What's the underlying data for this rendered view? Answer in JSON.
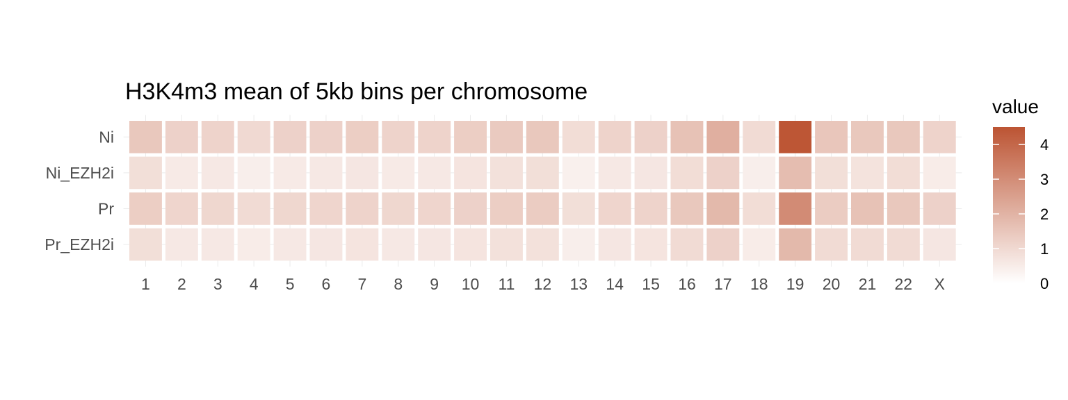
{
  "chart_data": {
    "type": "heatmap",
    "title": "H3K4m3 mean of 5kb bins per chromosome",
    "xlabel": "",
    "ylabel": "",
    "x_categories": [
      "1",
      "2",
      "3",
      "4",
      "5",
      "6",
      "7",
      "8",
      "9",
      "10",
      "11",
      "12",
      "13",
      "14",
      "15",
      "16",
      "17",
      "18",
      "19",
      "20",
      "21",
      "22",
      "X"
    ],
    "y_categories": [
      "Ni",
      "Ni_EZH2i",
      "Pr",
      "Pr_EZH2i"
    ],
    "values": [
      [
        1.45,
        1.2,
        1.15,
        1.0,
        1.2,
        1.2,
        1.3,
        1.15,
        1.15,
        1.3,
        1.4,
        1.45,
        0.9,
        1.15,
        1.2,
        1.6,
        2.1,
        0.95,
        4.45,
        1.5,
        1.45,
        1.45,
        1.15
      ],
      [
        0.85,
        0.55,
        0.6,
        0.45,
        0.55,
        0.6,
        0.65,
        0.55,
        0.6,
        0.7,
        0.8,
        0.85,
        0.4,
        0.6,
        0.65,
        0.9,
        1.2,
        0.45,
        1.75,
        0.85,
        0.75,
        0.9,
        0.5
      ],
      [
        1.3,
        1.1,
        1.05,
        0.95,
        1.05,
        1.1,
        1.15,
        1.05,
        1.1,
        1.2,
        1.3,
        1.35,
        0.85,
        1.1,
        1.15,
        1.45,
        1.85,
        0.9,
        3.05,
        1.35,
        1.6,
        1.45,
        1.2
      ],
      [
        0.85,
        0.6,
        0.6,
        0.5,
        0.6,
        0.65,
        0.7,
        0.6,
        0.65,
        0.7,
        0.8,
        0.8,
        0.45,
        0.65,
        0.7,
        0.95,
        1.2,
        0.5,
        1.85,
        0.95,
        0.95,
        0.95,
        0.65
      ]
    ],
    "color_scale": {
      "low": "#ffffff",
      "high": "#bc5433",
      "limits": [
        0,
        4.5
      ],
      "breaks": [
        0,
        1,
        2,
        3,
        4
      ],
      "break_labels": [
        "0",
        "1",
        "2",
        "3",
        "4"
      ]
    },
    "legend": {
      "title": "value",
      "position": "right"
    },
    "grid": false
  }
}
